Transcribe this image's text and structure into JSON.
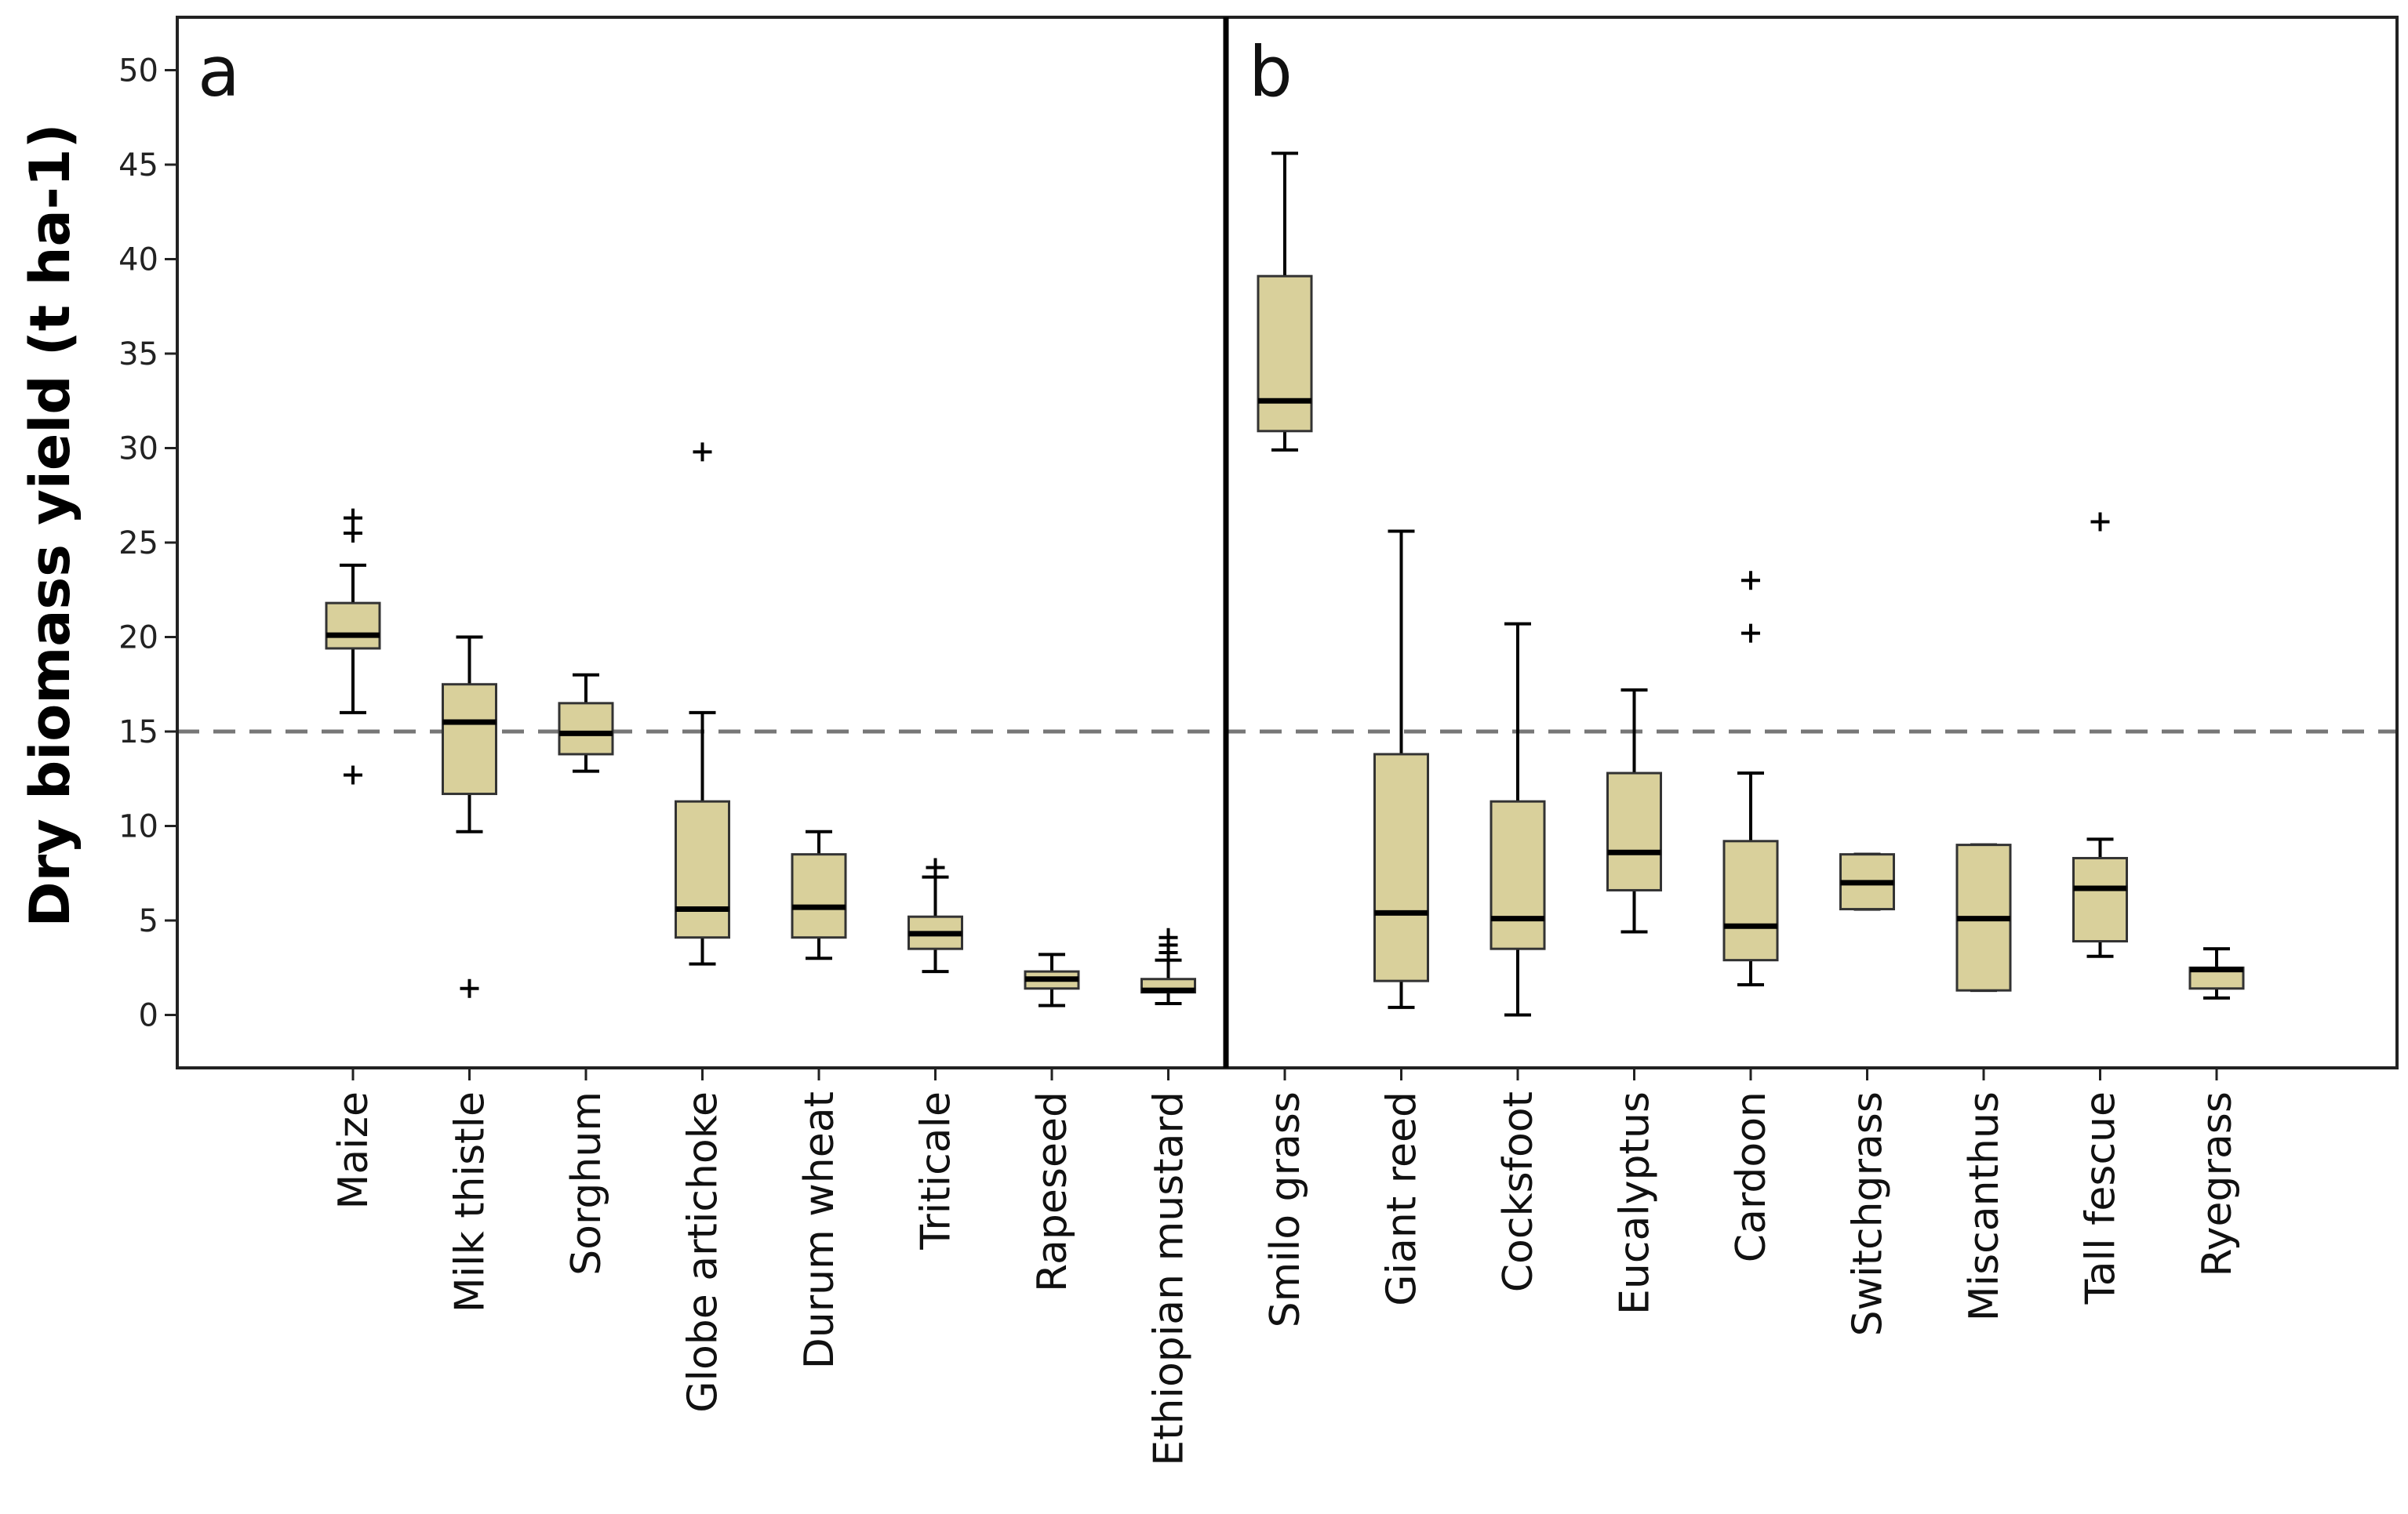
{
  "chart_data": {
    "type": "boxplot",
    "ylabel": "Dry biomass yield (t ha-1)",
    "ylim": [
      -2.8,
      52.8
    ],
    "yticks": [
      0,
      5,
      10,
      15,
      20,
      25,
      30,
      35,
      40,
      45,
      50
    ],
    "reference_line": 15,
    "box_color": "#d9d09b",
    "panels": [
      {
        "label": "a",
        "categories": [
          {
            "name": "Maize",
            "min": 16,
            "q1": 19.4,
            "median": 20.1,
            "q3": 21.8,
            "max": 23.8,
            "outliers": [
              26.3,
              25.5,
              12.7
            ]
          },
          {
            "name": "Milk thistle",
            "min": 9.7,
            "q1": 11.7,
            "median": 15.5,
            "q3": 17.5,
            "max": 20.0,
            "outliers": [
              1.4
            ]
          },
          {
            "name": "Sorghum",
            "min": 12.9,
            "q1": 13.8,
            "median": 14.9,
            "q3": 16.5,
            "max": 18.0,
            "outliers": []
          },
          {
            "name": "Globe artichoke",
            "min": 2.7,
            "q1": 4.1,
            "median": 5.6,
            "q3": 11.3,
            "max": 16.0,
            "outliers": [
              29.8
            ]
          },
          {
            "name": "Durum wheat",
            "min": 3.0,
            "q1": 4.1,
            "median": 5.7,
            "q3": 8.5,
            "max": 9.7,
            "outliers": []
          },
          {
            "name": "Triticale",
            "min": 2.3,
            "q1": 3.5,
            "median": 4.3,
            "q3": 5.2,
            "max": 7.3,
            "outliers": [
              7.8
            ]
          },
          {
            "name": "Rapeseed",
            "min": 0.5,
            "q1": 1.4,
            "median": 1.9,
            "q3": 2.3,
            "max": 3.2,
            "outliers": []
          },
          {
            "name": "Ethiopian mustard",
            "min": 0.6,
            "q1": 1.2,
            "median": 1.3,
            "q3": 1.9,
            "max": 2.9,
            "outliers": [
              3.3,
              3.7,
              4.1
            ]
          }
        ]
      },
      {
        "label": "b",
        "categories": [
          {
            "name": "Smilo grass",
            "min": 29.9,
            "q1": 30.9,
            "median": 32.5,
            "q3": 39.1,
            "max": 45.6,
            "outliers": []
          },
          {
            "name": "Giant reed",
            "min": 0.4,
            "q1": 1.8,
            "median": 5.4,
            "q3": 13.8,
            "max": 25.6,
            "outliers": []
          },
          {
            "name": "Cocksfoot",
            "min": 0.0,
            "q1": 3.5,
            "median": 5.1,
            "q3": 11.3,
            "max": 20.7,
            "outliers": []
          },
          {
            "name": "Eucalyptus",
            "min": 4.4,
            "q1": 6.6,
            "median": 8.6,
            "q3": 12.8,
            "max": 17.2,
            "outliers": []
          },
          {
            "name": "Cardoon",
            "min": 1.6,
            "q1": 2.9,
            "median": 4.7,
            "q3": 9.2,
            "max": 12.8,
            "outliers": [
              23.0,
              20.2
            ]
          },
          {
            "name": "Switchgrass",
            "min": 5.6,
            "q1": 5.6,
            "median": 7.0,
            "q3": 8.5,
            "max": 8.5,
            "outliers": []
          },
          {
            "name": "Miscanthus",
            "min": 1.3,
            "q1": 1.3,
            "median": 5.1,
            "q3": 9.0,
            "max": 9.0,
            "outliers": []
          },
          {
            "name": "Tall fescue",
            "min": 3.1,
            "q1": 3.9,
            "median": 6.7,
            "q3": 8.3,
            "max": 9.3,
            "outliers": [
              26.1
            ]
          },
          {
            "name": "Ryegrass",
            "min": 0.9,
            "q1": 1.4,
            "median": 2.4,
            "q3": 2.5,
            "max": 3.5,
            "outliers": []
          }
        ]
      }
    ]
  }
}
